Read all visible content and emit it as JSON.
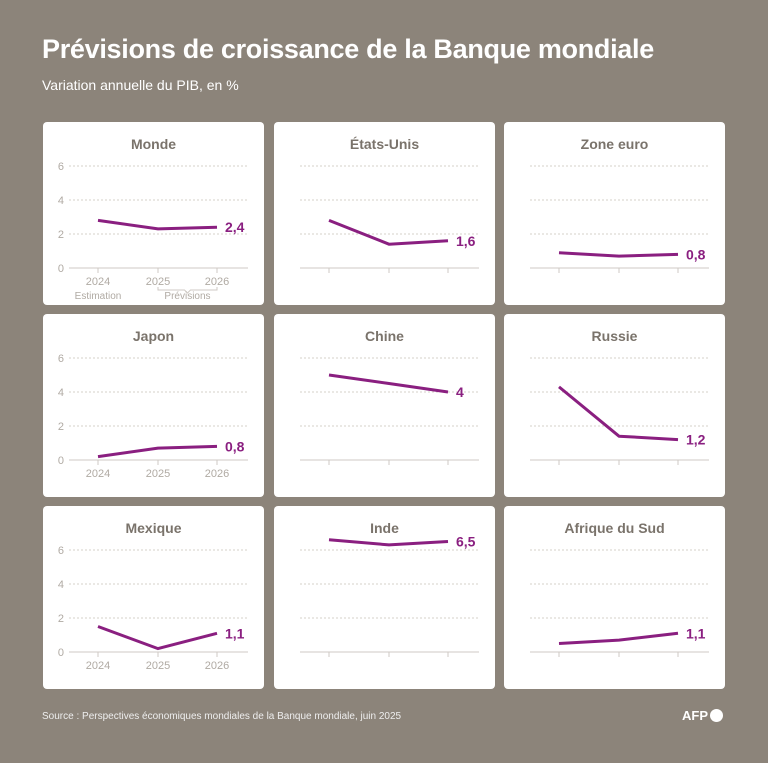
{
  "header": {
    "title": "Prévisions de croissance de la Banque mondiale",
    "subtitle": "Variation annuelle du PIB, en %"
  },
  "footer": {
    "source": "Source : Perspectives économiques mondiales de la Banque mondiale, juin 2025",
    "logo": "AFP"
  },
  "colors": {
    "line": "#8a1f80",
    "background": "#8c847a",
    "panel": "#ffffff",
    "axis_text": "#b0aaa3",
    "title_text": "#7a736b"
  },
  "chart_data": [
    {
      "type": "line",
      "title": "Monde",
      "categories": [
        "2024",
        "2025",
        "2026"
      ],
      "values": [
        2.8,
        2.3,
        2.4
      ],
      "end_label": "2,4",
      "ylim": [
        0,
        6
      ],
      "yticks": [
        "0",
        "2",
        "4",
        "6"
      ],
      "annotations": {
        "estimation": "Estimation",
        "previsions": "Prévisions"
      }
    },
    {
      "type": "line",
      "title": "États-Unis",
      "categories": [
        "2024",
        "2025",
        "2026"
      ],
      "values": [
        2.8,
        1.4,
        1.6
      ],
      "end_label": "1,6",
      "ylim": [
        0,
        6
      ]
    },
    {
      "type": "line",
      "title": "Zone euro",
      "categories": [
        "2024",
        "2025",
        "2026"
      ],
      "values": [
        0.9,
        0.7,
        0.8
      ],
      "end_label": "0,8",
      "ylim": [
        0,
        6
      ]
    },
    {
      "type": "line",
      "title": "Japon",
      "categories": [
        "2024",
        "2025",
        "2026"
      ],
      "values": [
        0.2,
        0.7,
        0.8
      ],
      "end_label": "0,8",
      "ylim": [
        0,
        6
      ],
      "yticks": [
        "0",
        "2",
        "4",
        "6"
      ]
    },
    {
      "type": "line",
      "title": "Chine",
      "categories": [
        "2024",
        "2025",
        "2026"
      ],
      "values": [
        5.0,
        4.5,
        4.0
      ],
      "end_label": "4",
      "ylim": [
        0,
        6
      ]
    },
    {
      "type": "line",
      "title": "Russie",
      "categories": [
        "2024",
        "2025",
        "2026"
      ],
      "values": [
        4.3,
        1.4,
        1.2
      ],
      "end_label": "1,2",
      "ylim": [
        0,
        6
      ]
    },
    {
      "type": "line",
      "title": "Mexique",
      "categories": [
        "2024",
        "2025",
        "2026"
      ],
      "values": [
        1.5,
        0.2,
        1.1
      ],
      "end_label": "1,1",
      "ylim": [
        0,
        6
      ],
      "yticks": [
        "0",
        "2",
        "4",
        "6"
      ]
    },
    {
      "type": "line",
      "title": "Inde",
      "categories": [
        "2024",
        "2025",
        "2026"
      ],
      "values": [
        6.6,
        6.3,
        6.5
      ],
      "end_label": "6,5",
      "ylim": [
        0,
        6
      ]
    },
    {
      "type": "line",
      "title": "Afrique du Sud",
      "categories": [
        "2024",
        "2025",
        "2026"
      ],
      "values": [
        0.5,
        0.7,
        1.1
      ],
      "end_label": "1,1",
      "ylim": [
        0,
        6
      ]
    }
  ]
}
